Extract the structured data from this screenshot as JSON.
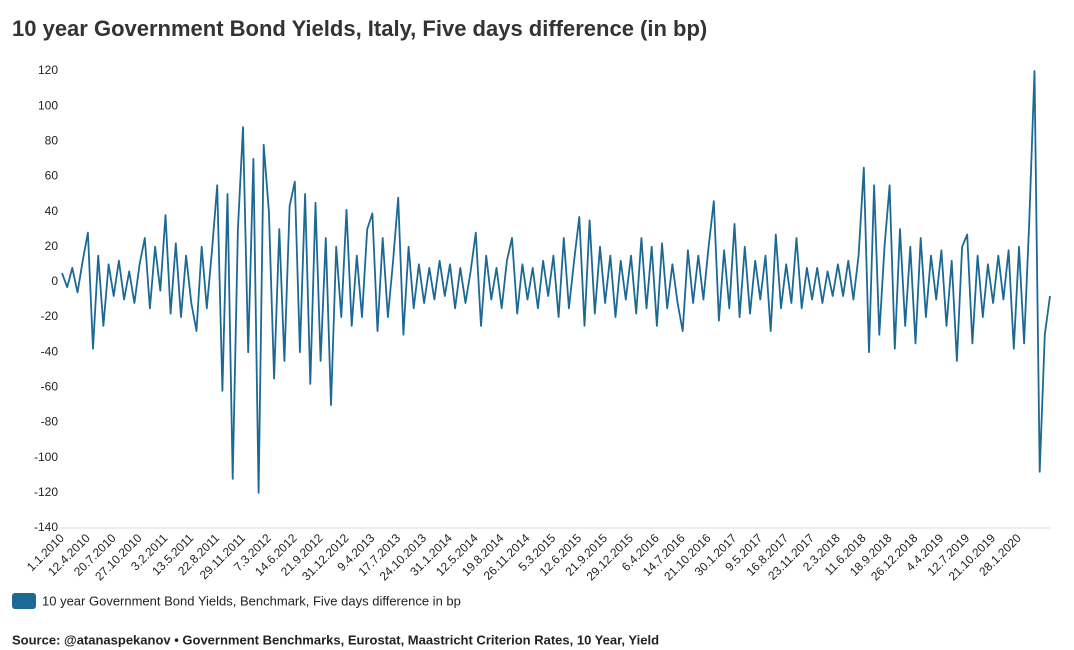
{
  "chart_data": {
    "type": "line",
    "title": "10 year Government Bond Yields, Italy, Five days difference (in bp)",
    "source": "Source: @atanaspekanov • Government Benchmarks, Eurostat, Maastricht Criterion Rates, 10 Year, Yield",
    "ylim": [
      -140,
      120
    ],
    "yticks": [
      -140,
      -120,
      -100,
      -80,
      -60,
      -40,
      -20,
      0,
      20,
      40,
      60,
      80,
      100,
      120
    ],
    "categories": [
      "1.1.2010",
      null,
      null,
      null,
      null,
      "12.4.2010",
      null,
      null,
      null,
      null,
      "20.7.2010",
      null,
      null,
      null,
      null,
      "27.10.2010",
      null,
      null,
      null,
      null,
      "3.2.2011",
      null,
      null,
      null,
      null,
      "13.5.2011",
      null,
      null,
      null,
      null,
      "22.8.2011",
      null,
      null,
      null,
      null,
      "29.11.2011",
      null,
      null,
      null,
      null,
      "7.3.2012",
      null,
      null,
      null,
      null,
      "14.6.2012",
      null,
      null,
      null,
      null,
      "21.9.2012",
      null,
      null,
      null,
      null,
      "31.12.2012",
      null,
      null,
      null,
      null,
      "9.4.2013",
      null,
      null,
      null,
      null,
      "17.7.2013",
      null,
      null,
      null,
      null,
      "24.10.2013",
      null,
      null,
      null,
      null,
      "31.1.2014",
      null,
      null,
      null,
      null,
      "12.5.2014",
      null,
      null,
      null,
      null,
      "19.8.2014",
      null,
      null,
      null,
      null,
      "26.11.2014",
      null,
      null,
      null,
      null,
      "5.3.2015",
      null,
      null,
      null,
      null,
      "12.6.2015",
      null,
      null,
      null,
      null,
      "21.9.2015",
      null,
      null,
      null,
      null,
      "29.12.2015",
      null,
      null,
      null,
      null,
      "6.4.2016",
      null,
      null,
      null,
      null,
      "14.7.2016",
      null,
      null,
      null,
      null,
      "21.10.2016",
      null,
      null,
      null,
      null,
      "30.1.2017",
      null,
      null,
      null,
      null,
      "9.5.2017",
      null,
      null,
      null,
      null,
      "16.8.2017",
      null,
      null,
      null,
      null,
      "23.11.2017",
      null,
      null,
      null,
      null,
      "2.3.2018",
      null,
      null,
      null,
      null,
      "11.6.2018",
      null,
      null,
      null,
      null,
      "18.9.2018",
      null,
      null,
      null,
      null,
      "26.12.2018",
      null,
      null,
      null,
      null,
      "4.4.2019",
      null,
      null,
      null,
      null,
      "12.7.2019",
      null,
      null,
      null,
      null,
      "21.10.2019",
      null,
      null,
      null,
      null,
      "28.1.2020",
      null,
      null,
      null,
      null,
      null,
      null
    ],
    "series": [
      {
        "name": "10 year Government Bond Yields, Benchmark, Five days difference in bp",
        "color": "#1d6996",
        "values": [
          5,
          -3,
          8,
          -6,
          12,
          28,
          -38,
          15,
          -25,
          10,
          -8,
          12,
          -10,
          6,
          -12,
          10,
          25,
          -15,
          20,
          -5,
          38,
          -18,
          22,
          -20,
          15,
          -12,
          -28,
          20,
          -15,
          18,
          55,
          -62,
          50,
          -112,
          30,
          88,
          -40,
          70,
          -120,
          78,
          40,
          -55,
          30,
          -45,
          43,
          57,
          -40,
          50,
          -58,
          45,
          -45,
          25,
          -70,
          20,
          -20,
          41,
          -25,
          15,
          -20,
          30,
          39,
          -28,
          25,
          -20,
          12,
          48,
          -30,
          20,
          -15,
          10,
          -12,
          8,
          -10,
          12,
          -8,
          10,
          -15,
          8,
          -12,
          6,
          28,
          -25,
          15,
          -10,
          8,
          -15,
          12,
          25,
          -18,
          10,
          -10,
          8,
          -15,
          12,
          -8,
          15,
          -20,
          25,
          -15,
          12,
          37,
          -25,
          35,
          -18,
          20,
          -12,
          15,
          -20,
          12,
          -10,
          15,
          -18,
          25,
          -15,
          20,
          -25,
          22,
          -15,
          10,
          -12,
          -28,
          18,
          -12,
          15,
          -10,
          20,
          46,
          -22,
          18,
          -15,
          33,
          -20,
          20,
          -18,
          12,
          -10,
          15,
          -28,
          27,
          -15,
          10,
          -12,
          25,
          -15,
          8,
          -10,
          8,
          -12,
          6,
          -8,
          10,
          -8,
          12,
          -10,
          15,
          65,
          -40,
          55,
          -30,
          20,
          55,
          -38,
          30,
          -25,
          20,
          -35,
          25,
          -20,
          15,
          -10,
          18,
          -25,
          12,
          -45,
          20,
          27,
          -35,
          15,
          -20,
          10,
          -12,
          15,
          -10,
          18,
          -38,
          20,
          -35,
          35,
          120,
          -108,
          -30,
          -8
        ]
      }
    ]
  }
}
